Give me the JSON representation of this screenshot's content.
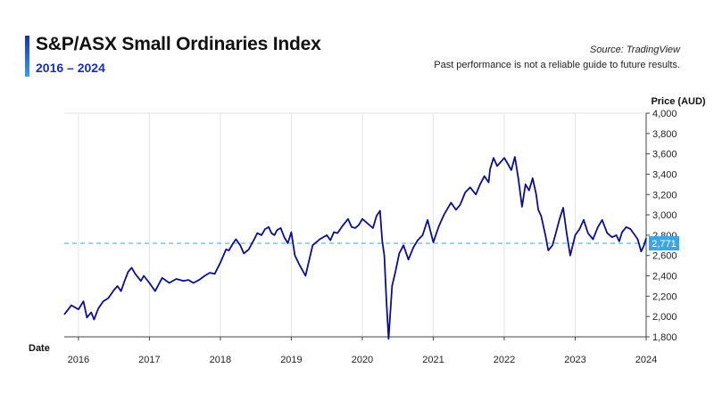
{
  "header": {
    "title": "S&P/ASX Small Ordinaries Index",
    "subtitle": "2016 – 2024",
    "source": "Source: TradingView",
    "disclaimer": "Past performance is not a reliable guide to future results."
  },
  "colors": {
    "line": "#0b0f8f",
    "accent": "#1a2fb0",
    "reference": "#3aa8e0",
    "grid": "#e3e3e3"
  },
  "chart_data": {
    "type": "line",
    "xlabel": "Date",
    "ylabel": "Price (AUD)",
    "xlim": [
      2015.8,
      2024.0
    ],
    "ylim": [
      1800,
      4000
    ],
    "yticks": [
      1800,
      2000,
      2200,
      2400,
      2600,
      2800,
      3000,
      3200,
      3400,
      3600,
      3800,
      4000
    ],
    "ytick_labels": [
      "1,800",
      "2,000",
      "2,200",
      "2,400",
      "2,600",
      "2,800",
      "3,000",
      "3,200",
      "3,400",
      "3,600",
      "3,800",
      "4,000"
    ],
    "xticks": [
      2016,
      2017,
      2018,
      2019,
      2020,
      2021,
      2022,
      2023,
      2024
    ],
    "xtick_labels": [
      "2016",
      "2017",
      "2018",
      "2019",
      "2020",
      "2021",
      "2022",
      "2023",
      "2024"
    ],
    "grid": "vertical",
    "reference_line": {
      "value": 2720
    },
    "last_value": {
      "value": 2771,
      "label": "2,771"
    },
    "series": [
      {
        "x": [
          2015.8,
          2015.9,
          2016.0,
          2016.07,
          2016.12,
          2016.18,
          2016.22,
          2016.28,
          2016.35,
          2016.42,
          2016.5,
          2016.55,
          2016.6,
          2016.65,
          2016.7,
          2016.75,
          2016.8,
          2016.88,
          2016.92,
          2017.0,
          2017.08,
          2017.18,
          2017.28,
          2017.38,
          2017.48,
          2017.55,
          2017.62,
          2017.7,
          2017.78,
          2017.85,
          2017.92,
          2018.0,
          2018.08,
          2018.12,
          2018.18,
          2018.22,
          2018.28,
          2018.33,
          2018.4,
          2018.47,
          2018.52,
          2018.58,
          2018.63,
          2018.68,
          2018.72,
          2018.76,
          2018.8,
          2018.85,
          2018.9,
          2018.95,
          2019.0,
          2019.05,
          2019.12,
          2019.2,
          2019.3,
          2019.4,
          2019.5,
          2019.55,
          2019.6,
          2019.65,
          2019.72,
          2019.8,
          2019.85,
          2019.9,
          2019.95,
          2020.0,
          2020.05,
          2020.1,
          2020.15,
          2020.2,
          2020.25,
          2020.28,
          2020.31,
          2020.34,
          2020.37,
          2020.42,
          2020.47,
          2020.52,
          2020.58,
          2020.65,
          2020.72,
          2020.78,
          2020.85,
          2020.92,
          2021.0,
          2021.08,
          2021.15,
          2021.2,
          2021.25,
          2021.32,
          2021.38,
          2021.45,
          2021.52,
          2021.6,
          2021.66,
          2021.72,
          2021.78,
          2021.8,
          2021.85,
          2021.9,
          2021.95,
          2022.0,
          2022.05,
          2022.1,
          2022.15,
          2022.2,
          2022.25,
          2022.3,
          2022.35,
          2022.4,
          2022.45,
          2022.48,
          2022.52,
          2022.58,
          2022.62,
          2022.68,
          2022.72,
          2022.78,
          2022.83,
          2022.88,
          2022.93,
          2023.0,
          2023.06,
          2023.12,
          2023.18,
          2023.25,
          2023.32,
          2023.38,
          2023.45,
          2023.52,
          2023.58,
          2023.62,
          2023.66,
          2023.72,
          2023.78,
          2023.84,
          2023.88,
          2023.93,
          2023.97,
          2024.0
        ],
        "y": [
          2020,
          2110,
          2070,
          2150,
          1990,
          2040,
          1970,
          2080,
          2150,
          2180,
          2260,
          2300,
          2250,
          2350,
          2440,
          2480,
          2420,
          2350,
          2400,
          2330,
          2250,
          2380,
          2330,
          2370,
          2350,
          2360,
          2330,
          2360,
          2400,
          2430,
          2420,
          2530,
          2660,
          2650,
          2720,
          2760,
          2700,
          2620,
          2660,
          2750,
          2820,
          2800,
          2860,
          2880,
          2820,
          2800,
          2850,
          2870,
          2780,
          2720,
          2830,
          2600,
          2500,
          2400,
          2700,
          2760,
          2800,
          2750,
          2830,
          2820,
          2890,
          2960,
          2880,
          2870,
          2900,
          2960,
          2930,
          2900,
          2870,
          2990,
          3040,
          2750,
          2600,
          2150,
          1780,
          2300,
          2450,
          2620,
          2700,
          2560,
          2680,
          2750,
          2800,
          2950,
          2730,
          2890,
          3000,
          3060,
          3120,
          3050,
          3100,
          3220,
          3270,
          3200,
          3300,
          3380,
          3320,
          3450,
          3560,
          3480,
          3520,
          3560,
          3500,
          3440,
          3570,
          3350,
          3080,
          3300,
          3240,
          3360,
          3200,
          3050,
          2990,
          2800,
          2650,
          2700,
          2800,
          2960,
          3070,
          2820,
          2600,
          2800,
          2860,
          2950,
          2820,
          2760,
          2880,
          2950,
          2820,
          2780,
          2800,
          2740,
          2830,
          2880,
          2860,
          2800,
          2760,
          2640,
          2700,
          2771
        ]
      }
    ]
  }
}
